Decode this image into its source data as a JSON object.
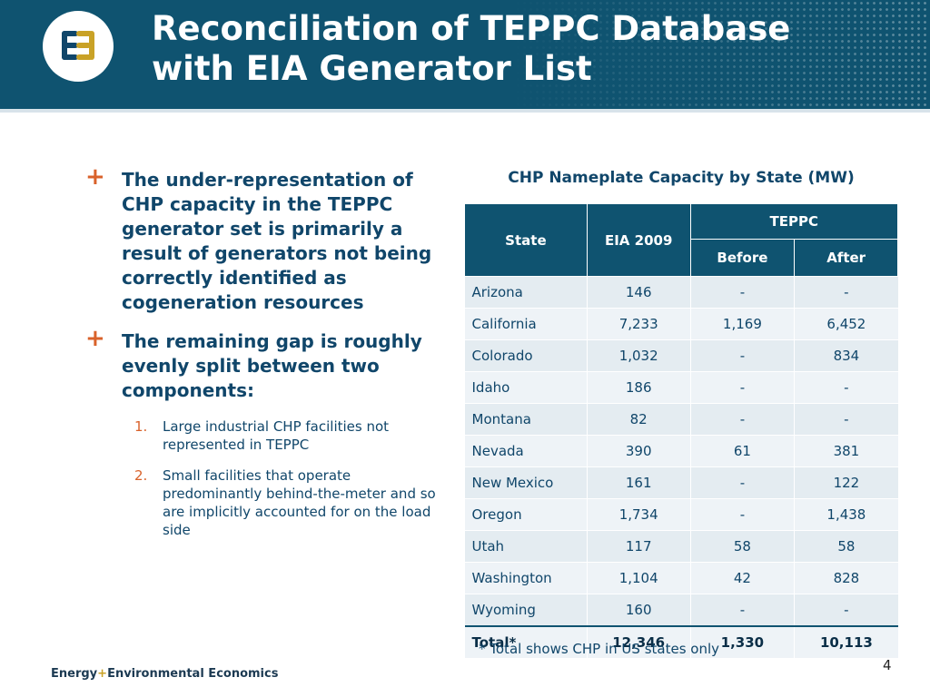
{
  "slide": {
    "title_line1": "Reconciliation of TEPPC Database",
    "title_line2": "with EIA Generator List",
    "page_number": "4"
  },
  "bullets": [
    {
      "marker": "+",
      "text": "The under-representation of CHP capacity in the TEPPC generator set is primarily a result of generators not being correctly identified as cogeneration resources"
    },
    {
      "marker": "+",
      "text": "The remaining gap is roughly evenly split between two components:"
    }
  ],
  "sub_items": [
    {
      "number": "1.",
      "text": "Large industrial CHP facilities not represented in TEPPC"
    },
    {
      "number": "2.",
      "text": "Small facilities that operate predominantly behind-the-meter and so are implicitly accounted for on the load side"
    }
  ],
  "table": {
    "caption": "CHP Nameplate Capacity by State (MW)",
    "headers": {
      "state": "State",
      "eia": "EIA 2009",
      "teppc": "TEPPC",
      "before": "Before",
      "after": "After"
    },
    "rows": [
      [
        "Arizona",
        "146",
        "-",
        "-"
      ],
      [
        "California",
        "7,233",
        "1,169",
        "6,452"
      ],
      [
        "Colorado",
        "1,032",
        "-",
        "834"
      ],
      [
        "Idaho",
        "186",
        "-",
        "-"
      ],
      [
        "Montana",
        "82",
        "-",
        "-"
      ],
      [
        "Nevada",
        "390",
        "61",
        "381"
      ],
      [
        "New Mexico",
        "161",
        "-",
        "122"
      ],
      [
        "Oregon",
        "1,734",
        "-",
        "1,438"
      ],
      [
        "Utah",
        "117",
        "58",
        "58"
      ],
      [
        "Washington",
        "1,104",
        "42",
        "828"
      ],
      [
        "Wyoming",
        "160",
        "-",
        "-"
      ]
    ],
    "total": [
      "Total*",
      "12,346",
      "1,330",
      "10,113"
    ],
    "footnote": "* Total shows CHP in US states only"
  },
  "footer": {
    "brand_part1": "Energy",
    "brand_plus": "+",
    "brand_part2": "Environmental Economics"
  },
  "colors": {
    "header_bg": "#0f5370",
    "accent_orange": "#d9622b",
    "text_navy": "#10466a",
    "logo_gold": "#c9a227"
  }
}
